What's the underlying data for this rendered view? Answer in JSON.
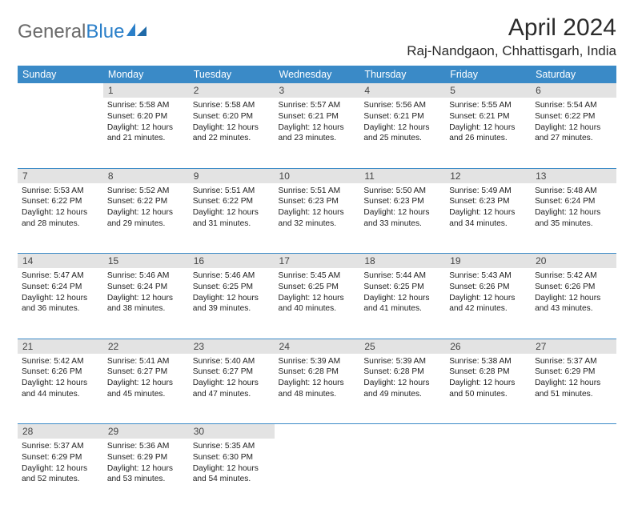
{
  "logo": {
    "part1": "General",
    "part2": "Blue"
  },
  "title": "April 2024",
  "location": "Raj-Nandgaon, Chhattisgarh, India",
  "colors": {
    "header_bg": "#3a8ac7",
    "header_text": "#ffffff",
    "daynum_bg": "#e3e3e3",
    "rule": "#3a8ac7",
    "logo_blue": "#2a7fc9",
    "logo_gray": "#6a6a6a"
  },
  "weekdays": [
    "Sunday",
    "Monday",
    "Tuesday",
    "Wednesday",
    "Thursday",
    "Friday",
    "Saturday"
  ],
  "weeks": [
    [
      null,
      {
        "n": "1",
        "sunrise": "5:58 AM",
        "sunset": "6:20 PM",
        "daylight": "12 hours and 21 minutes."
      },
      {
        "n": "2",
        "sunrise": "5:58 AM",
        "sunset": "6:20 PM",
        "daylight": "12 hours and 22 minutes."
      },
      {
        "n": "3",
        "sunrise": "5:57 AM",
        "sunset": "6:21 PM",
        "daylight": "12 hours and 23 minutes."
      },
      {
        "n": "4",
        "sunrise": "5:56 AM",
        "sunset": "6:21 PM",
        "daylight": "12 hours and 25 minutes."
      },
      {
        "n": "5",
        "sunrise": "5:55 AM",
        "sunset": "6:21 PM",
        "daylight": "12 hours and 26 minutes."
      },
      {
        "n": "6",
        "sunrise": "5:54 AM",
        "sunset": "6:22 PM",
        "daylight": "12 hours and 27 minutes."
      }
    ],
    [
      {
        "n": "7",
        "sunrise": "5:53 AM",
        "sunset": "6:22 PM",
        "daylight": "12 hours and 28 minutes."
      },
      {
        "n": "8",
        "sunrise": "5:52 AM",
        "sunset": "6:22 PM",
        "daylight": "12 hours and 29 minutes."
      },
      {
        "n": "9",
        "sunrise": "5:51 AM",
        "sunset": "6:22 PM",
        "daylight": "12 hours and 31 minutes."
      },
      {
        "n": "10",
        "sunrise": "5:51 AM",
        "sunset": "6:23 PM",
        "daylight": "12 hours and 32 minutes."
      },
      {
        "n": "11",
        "sunrise": "5:50 AM",
        "sunset": "6:23 PM",
        "daylight": "12 hours and 33 minutes."
      },
      {
        "n": "12",
        "sunrise": "5:49 AM",
        "sunset": "6:23 PM",
        "daylight": "12 hours and 34 minutes."
      },
      {
        "n": "13",
        "sunrise": "5:48 AM",
        "sunset": "6:24 PM",
        "daylight": "12 hours and 35 minutes."
      }
    ],
    [
      {
        "n": "14",
        "sunrise": "5:47 AM",
        "sunset": "6:24 PM",
        "daylight": "12 hours and 36 minutes."
      },
      {
        "n": "15",
        "sunrise": "5:46 AM",
        "sunset": "6:24 PM",
        "daylight": "12 hours and 38 minutes."
      },
      {
        "n": "16",
        "sunrise": "5:46 AM",
        "sunset": "6:25 PM",
        "daylight": "12 hours and 39 minutes."
      },
      {
        "n": "17",
        "sunrise": "5:45 AM",
        "sunset": "6:25 PM",
        "daylight": "12 hours and 40 minutes."
      },
      {
        "n": "18",
        "sunrise": "5:44 AM",
        "sunset": "6:25 PM",
        "daylight": "12 hours and 41 minutes."
      },
      {
        "n": "19",
        "sunrise": "5:43 AM",
        "sunset": "6:26 PM",
        "daylight": "12 hours and 42 minutes."
      },
      {
        "n": "20",
        "sunrise": "5:42 AM",
        "sunset": "6:26 PM",
        "daylight": "12 hours and 43 minutes."
      }
    ],
    [
      {
        "n": "21",
        "sunrise": "5:42 AM",
        "sunset": "6:26 PM",
        "daylight": "12 hours and 44 minutes."
      },
      {
        "n": "22",
        "sunrise": "5:41 AM",
        "sunset": "6:27 PM",
        "daylight": "12 hours and 45 minutes."
      },
      {
        "n": "23",
        "sunrise": "5:40 AM",
        "sunset": "6:27 PM",
        "daylight": "12 hours and 47 minutes."
      },
      {
        "n": "24",
        "sunrise": "5:39 AM",
        "sunset": "6:28 PM",
        "daylight": "12 hours and 48 minutes."
      },
      {
        "n": "25",
        "sunrise": "5:39 AM",
        "sunset": "6:28 PM",
        "daylight": "12 hours and 49 minutes."
      },
      {
        "n": "26",
        "sunrise": "5:38 AM",
        "sunset": "6:28 PM",
        "daylight": "12 hours and 50 minutes."
      },
      {
        "n": "27",
        "sunrise": "5:37 AM",
        "sunset": "6:29 PM",
        "daylight": "12 hours and 51 minutes."
      }
    ],
    [
      {
        "n": "28",
        "sunrise": "5:37 AM",
        "sunset": "6:29 PM",
        "daylight": "12 hours and 52 minutes."
      },
      {
        "n": "29",
        "sunrise": "5:36 AM",
        "sunset": "6:29 PM",
        "daylight": "12 hours and 53 minutes."
      },
      {
        "n": "30",
        "sunrise": "5:35 AM",
        "sunset": "6:30 PM",
        "daylight": "12 hours and 54 minutes."
      },
      null,
      null,
      null,
      null
    ]
  ],
  "labels": {
    "sunrise": "Sunrise:",
    "sunset": "Sunset:",
    "daylight": "Daylight:"
  }
}
